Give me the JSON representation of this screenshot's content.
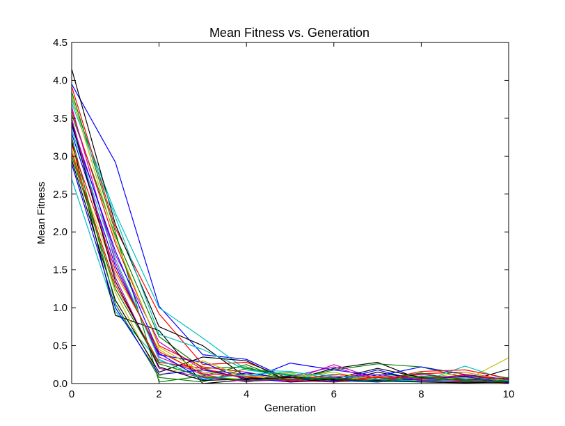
{
  "chart_data": {
    "type": "line",
    "title": "Mean Fitness vs. Generation",
    "xlabel": "Generation",
    "ylabel": "Mean Fitness",
    "xlim": [
      0,
      10
    ],
    "ylim": [
      0,
      4.5
    ],
    "xticks": [
      0,
      2,
      4,
      6,
      8,
      10
    ],
    "yticks": [
      0.0,
      0.5,
      1.0,
      1.5,
      2.0,
      2.5,
      3.0,
      3.5,
      4.0,
      4.5
    ],
    "xtick_labels": [
      "0",
      "2",
      "4",
      "6",
      "8",
      "10"
    ],
    "ytick_labels": [
      "0.0",
      "0.5",
      "1.0",
      "1.5",
      "2.0",
      "2.5",
      "3.0",
      "3.5",
      "4.0",
      "4.5"
    ],
    "grid": false,
    "legend": "none",
    "x": [
      0,
      1,
      2,
      3,
      4,
      5,
      6,
      7,
      8,
      9,
      10
    ],
    "series": [
      {
        "color": "#0000ff",
        "values": [
          3.95,
          2.92,
          1.02,
          0.38,
          0.32,
          0.05,
          0.12,
          0.08,
          0.04,
          0.06,
          0.02
        ]
      },
      {
        "color": "#00bfbf",
        "values": [
          3.75,
          2.25,
          1.0,
          0.6,
          0.18,
          0.1,
          0.08,
          0.12,
          0.09,
          0.05,
          0.03
        ]
      },
      {
        "color": "#ff0000",
        "values": [
          3.92,
          2.05,
          0.92,
          0.25,
          0.28,
          0.06,
          0.05,
          0.03,
          0.13,
          0.15,
          0.04
        ]
      },
      {
        "color": "#000000",
        "values": [
          4.15,
          2.1,
          0.75,
          0.5,
          0.08,
          0.04,
          0.2,
          0.28,
          0.05,
          0.02,
          0.19
        ]
      },
      {
        "color": "#008000",
        "values": [
          3.55,
          1.95,
          0.62,
          0.2,
          0.22,
          0.04,
          0.18,
          0.26,
          0.22,
          0.08,
          0.06
        ]
      },
      {
        "color": "#bfbf00",
        "values": [
          3.0,
          1.45,
          0.45,
          0.1,
          0.05,
          0.08,
          0.03,
          0.06,
          0.1,
          0.04,
          0.34
        ]
      },
      {
        "color": "#bf00bf",
        "values": [
          3.45,
          1.7,
          0.55,
          0.18,
          0.12,
          0.04,
          0.25,
          0.06,
          0.02,
          0.12,
          0.02
        ]
      },
      {
        "color": "#0000ff",
        "values": [
          3.3,
          1.55,
          0.38,
          0.28,
          0.04,
          0.27,
          0.18,
          0.1,
          0.22,
          0.12,
          0.05
        ]
      },
      {
        "color": "#00bfbf",
        "values": [
          2.7,
          0.95,
          0.3,
          0.15,
          0.1,
          0.12,
          0.05,
          0.03,
          0.02,
          0.23,
          0.04
        ]
      },
      {
        "color": "#ff0000",
        "values": [
          3.6,
          1.85,
          0.5,
          0.22,
          0.15,
          0.05,
          0.08,
          0.04,
          0.16,
          0.18,
          0.07
        ]
      },
      {
        "color": "#000000",
        "values": [
          3.2,
          0.9,
          0.7,
          0.0,
          0.05,
          0.1,
          0.02,
          0.15,
          0.05,
          0.03,
          0.01
        ]
      },
      {
        "color": "#008000",
        "values": [
          3.85,
          2.0,
          0.02,
          0.1,
          0.25,
          0.02,
          0.1,
          0.05,
          0.08,
          0.02,
          0.02
        ]
      },
      {
        "color": "#bfbf00",
        "values": [
          3.1,
          1.2,
          0.1,
          0.3,
          0.08,
          0.14,
          0.04,
          0.1,
          0.06,
          0.15,
          0.03
        ]
      },
      {
        "color": "#bf00bf",
        "values": [
          3.65,
          1.6,
          0.35,
          0.12,
          0.02,
          0.09,
          0.22,
          0.04,
          0.12,
          0.05,
          0.02
        ]
      },
      {
        "color": "#0000ff",
        "values": [
          3.4,
          1.75,
          0.4,
          0.05,
          0.14,
          0.06,
          0.03,
          0.18,
          0.03,
          0.1,
          0.06
        ]
      },
      {
        "color": "#00bfbf",
        "values": [
          3.7,
          2.2,
          0.65,
          0.45,
          0.18,
          0.16,
          0.06,
          0.02,
          0.1,
          0.06,
          0.04
        ]
      },
      {
        "color": "#ff0000",
        "values": [
          3.05,
          1.3,
          0.28,
          0.2,
          0.06,
          0.03,
          0.12,
          0.08,
          0.02,
          0.04,
          0.01
        ]
      },
      {
        "color": "#000000",
        "values": [
          2.95,
          1.1,
          0.15,
          0.35,
          0.3,
          0.02,
          0.06,
          0.2,
          0.08,
          0.06,
          0.03
        ]
      },
      {
        "color": "#008000",
        "values": [
          3.25,
          1.05,
          0.08,
          0.02,
          0.2,
          0.11,
          0.02,
          0.05,
          0.14,
          0.03,
          0.08
        ]
      },
      {
        "color": "#bfbf00",
        "values": [
          3.8,
          1.9,
          0.48,
          0.15,
          0.1,
          0.07,
          0.15,
          0.03,
          0.05,
          0.08,
          0.02
        ]
      },
      {
        "color": "#bf00bf",
        "values": [
          3.5,
          1.4,
          0.2,
          0.08,
          0.03,
          0.05,
          0.08,
          0.12,
          0.04,
          0.02,
          0.03
        ]
      },
      {
        "color": "#0000ff",
        "values": [
          2.9,
          1.0,
          0.12,
          0.18,
          0.07,
          0.02,
          0.04,
          0.02,
          0.06,
          0.09,
          0.01
        ]
      },
      {
        "color": "#00bfbf",
        "values": [
          3.35,
          1.65,
          0.32,
          0.06,
          0.12,
          0.15,
          0.1,
          0.06,
          0.03,
          0.05,
          0.02
        ]
      },
      {
        "color": "#ff0000",
        "values": [
          3.15,
          1.5,
          0.42,
          0.13,
          0.09,
          0.04,
          0.02,
          0.09,
          0.07,
          0.11,
          0.05
        ]
      },
      {
        "color": "#000000",
        "values": [
          3.45,
          1.35,
          0.22,
          0.04,
          0.06,
          0.08,
          0.05,
          0.04,
          0.02,
          0.01,
          0.02
        ]
      },
      {
        "color": "#008000",
        "values": [
          3.0,
          1.25,
          0.26,
          0.09,
          0.04,
          0.06,
          0.07,
          0.03,
          0.09,
          0.04,
          0.03
        ]
      }
    ]
  }
}
